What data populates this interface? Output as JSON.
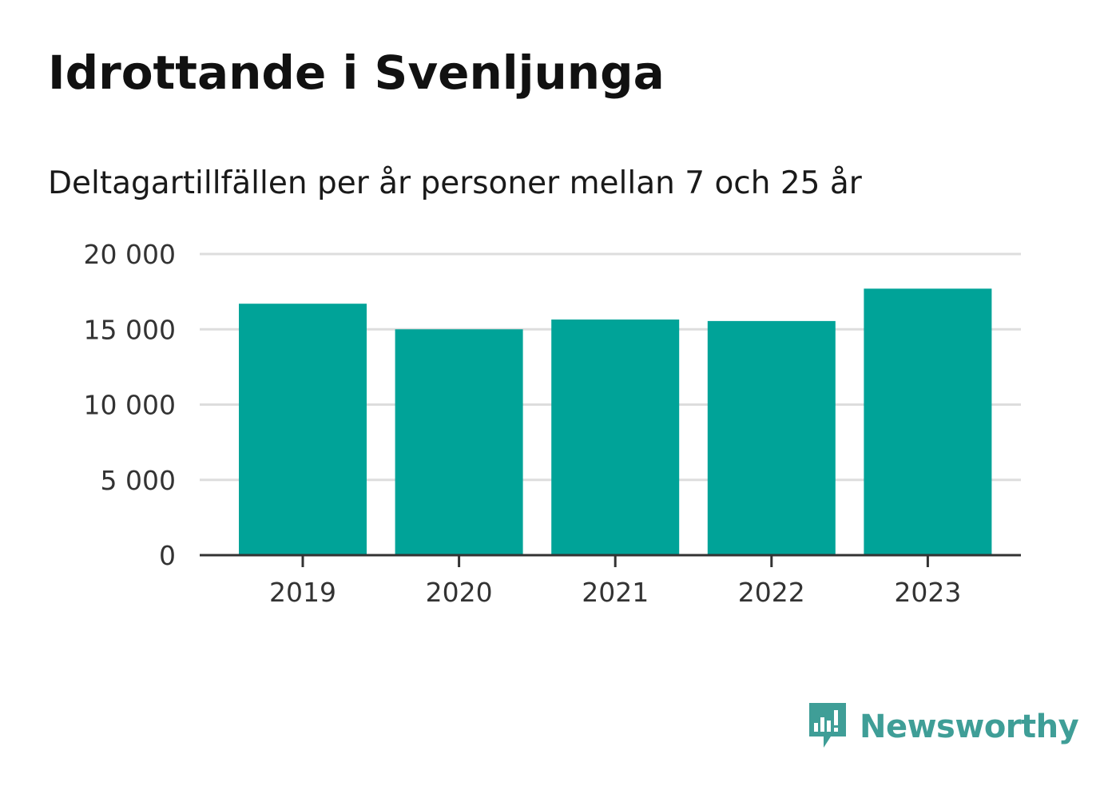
{
  "title": "Idrottande i Svenljunga",
  "subtitle": "Deltagartillfällen per år personer mellan 7 och 25 år",
  "brand": {
    "name": "Newsworthy",
    "icon": "newsworthy-logo-icon",
    "color": "#3f9e97"
  },
  "colors": {
    "bar": "#00a398",
    "grid": "#dddddd",
    "axis": "#333333"
  },
  "chart_data": {
    "type": "bar",
    "categories": [
      "2019",
      "2020",
      "2021",
      "2022",
      "2023"
    ],
    "values": [
      16700,
      15000,
      15650,
      15550,
      17700
    ],
    "ylim": [
      0,
      20000
    ],
    "yticks": [
      0,
      5000,
      10000,
      15000,
      20000
    ],
    "ytick_labels": [
      "0",
      "5 000",
      "10 000",
      "15 000",
      "20 000"
    ],
    "grid": true,
    "xlabel": "",
    "ylabel": ""
  }
}
